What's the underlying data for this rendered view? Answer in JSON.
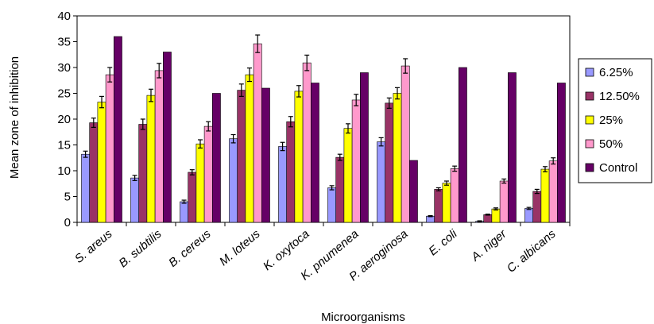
{
  "chart_data": {
    "type": "bar",
    "xlabel": "Microorganisms",
    "ylabel": "Mean zone of inhibition",
    "ylim": [
      0,
      40
    ],
    "yticks": [
      0,
      5,
      10,
      15,
      20,
      25,
      30,
      35,
      40
    ],
    "grid": false,
    "legend_position": "right",
    "error_bars": true,
    "categories": [
      "S. areus",
      "B. subtilis",
      "B. cereus",
      "M. loteus",
      "K. oxytoca",
      "K. pnumenea",
      "P. aeroginosa",
      "E. coli",
      "A. niger",
      "C. albicans"
    ],
    "series": [
      {
        "name": "6.25%",
        "color": "#9999ff",
        "values": [
          13.2,
          8.6,
          4.0,
          16.2,
          14.7,
          6.7,
          15.6,
          1.2,
          0.2,
          2.7
        ],
        "errors": [
          0.6,
          0.5,
          0.3,
          0.8,
          0.8,
          0.4,
          0.8,
          0.1,
          0.1,
          0.2
        ]
      },
      {
        "name": "12.50%",
        "color": "#993366",
        "values": [
          19.3,
          19.0,
          9.7,
          25.6,
          19.5,
          12.6,
          23.1,
          6.4,
          1.5,
          6.0
        ],
        "errors": [
          0.9,
          1.0,
          0.5,
          1.2,
          1.0,
          0.6,
          1.0,
          0.3,
          0.1,
          0.4
        ]
      },
      {
        "name": "25%",
        "color": "#ffff00",
        "values": [
          23.3,
          24.6,
          15.2,
          28.6,
          25.4,
          18.2,
          25.0,
          7.6,
          2.6,
          10.3
        ],
        "errors": [
          1.1,
          1.2,
          0.8,
          1.3,
          1.1,
          0.9,
          1.1,
          0.4,
          0.2,
          0.5
        ]
      },
      {
        "name": "50%",
        "color": "#ff99cc",
        "values": [
          28.6,
          29.4,
          18.6,
          34.6,
          30.9,
          23.7,
          30.3,
          10.4,
          8.0,
          11.9
        ],
        "errors": [
          1.4,
          1.4,
          0.9,
          1.7,
          1.5,
          1.1,
          1.4,
          0.5,
          0.4,
          0.6
        ]
      },
      {
        "name": "Control",
        "color": "#660066",
        "values": [
          36.0,
          33.0,
          25.0,
          26.0,
          27.0,
          29.0,
          12.0,
          30.0,
          29.0,
          27.0
        ],
        "errors": null
      }
    ]
  }
}
